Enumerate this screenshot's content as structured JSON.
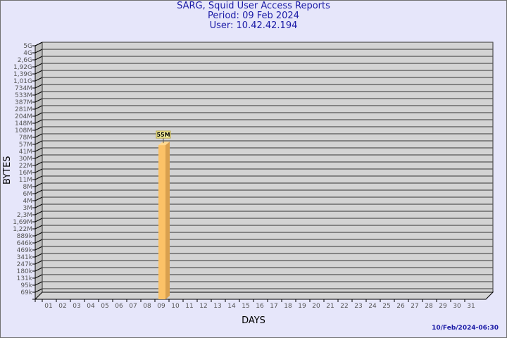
{
  "header": {
    "title": "SARG, Squid User Access Reports",
    "period": "Period: 09 Feb 2024",
    "user": "User: 10.42.42.194"
  },
  "footer": {
    "timestamp": "10/Feb/2024-06:30"
  },
  "chart_data": {
    "type": "bar",
    "title": "SARG, Squid User Access Reports",
    "xlabel": "DAYS",
    "ylabel": "BYTES",
    "scale": "log",
    "grid": true,
    "categories": [
      "01",
      "02",
      "03",
      "04",
      "05",
      "06",
      "07",
      "08",
      "09",
      "10",
      "11",
      "12",
      "13",
      "14",
      "15",
      "16",
      "17",
      "18",
      "19",
      "20",
      "21",
      "22",
      "23",
      "24",
      "25",
      "26",
      "27",
      "28",
      "29",
      "30",
      "31"
    ],
    "y_tick_labels": [
      "5G",
      "4G",
      "2,6G",
      "1,92G",
      "1,39G",
      "1,01G",
      "734M",
      "533M",
      "387M",
      "281M",
      "204M",
      "148M",
      "108M",
      "78M",
      "57M",
      "41M",
      "30M",
      "22M",
      "16M",
      "11M",
      "8M",
      "6M",
      "4M",
      "3M",
      "2,3M",
      "1,69M",
      "1,22M",
      "889k",
      "646k",
      "469k",
      "341k",
      "247k",
      "180k",
      "131k",
      "95k",
      "69k"
    ],
    "bars": [
      {
        "category": "09",
        "value": 55000000,
        "label": "55M"
      }
    ],
    "colors": {
      "bar_front": "#fcc267",
      "bar_side": "#d9a04e",
      "bar_top": "#ffd98f",
      "wall": "#d3d3d3",
      "side_wall": "#bdbdbd",
      "label_box": "#f5f0a0"
    }
  }
}
